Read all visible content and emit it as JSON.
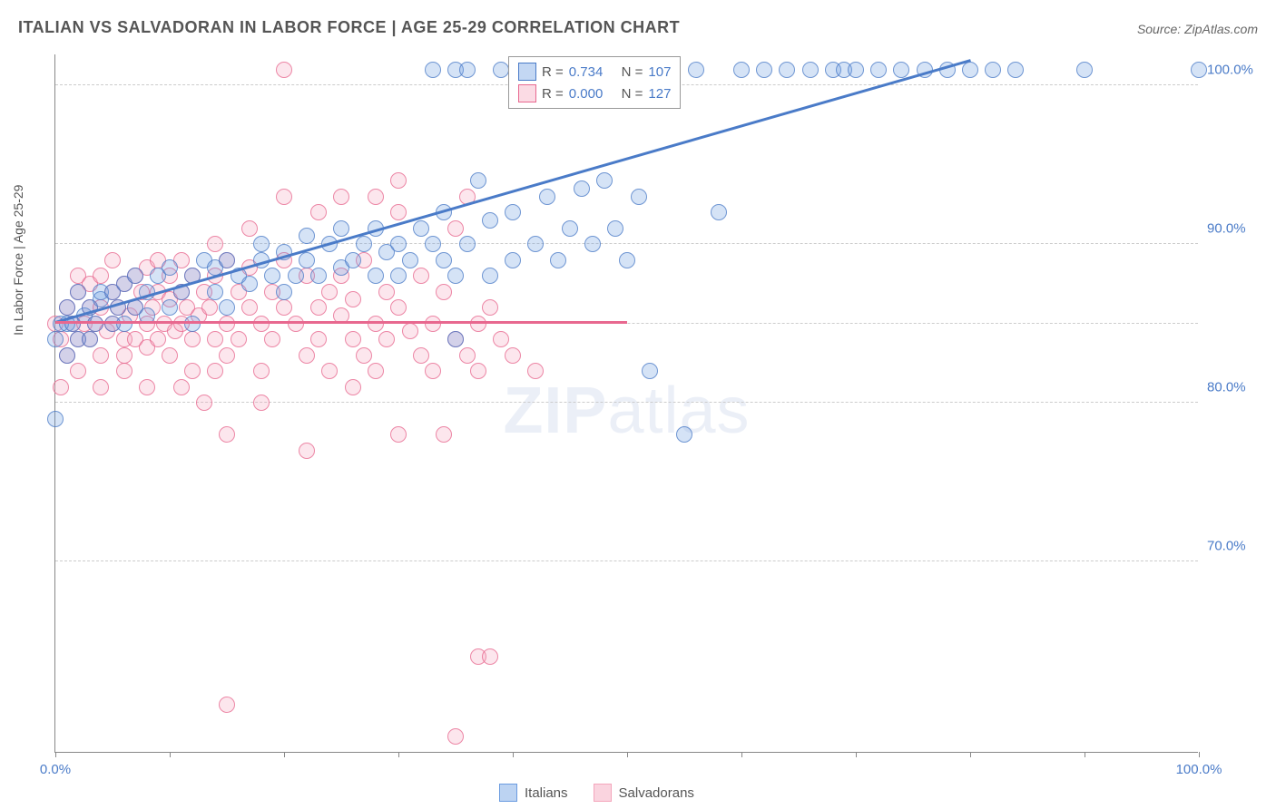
{
  "title": "ITALIAN VS SALVADORAN IN LABOR FORCE | AGE 25-29 CORRELATION CHART",
  "source": "Source: ZipAtlas.com",
  "ylabel": "In Labor Force | Age 25-29",
  "watermark_bold": "ZIP",
  "watermark_rest": "atlas",
  "chart": {
    "type": "scatter",
    "xlim": [
      0,
      100
    ],
    "ylim": [
      58,
      102
    ],
    "xtick_labels": {
      "0": "0.0%",
      "100": "100.0%"
    },
    "xtick_positions": [
      0,
      10,
      20,
      30,
      40,
      50,
      60,
      70,
      80,
      90,
      100
    ],
    "ytick_labels": {
      "70": "70.0%",
      "80": "80.0%",
      "90": "90.0%",
      "100": "100.0%"
    },
    "grid_y": [
      70,
      80,
      85,
      90,
      100
    ],
    "grid_color": "#cccccc",
    "background_color": "#ffffff",
    "marker_radius": 9,
    "marker_fill_opacity": 0.35,
    "series": [
      {
        "name": "Italians",
        "color": "#6a9be0",
        "stroke": "#4a7bc8",
        "r_value": "0.734",
        "n_value": "107",
        "trend": {
          "x1": 0,
          "y1": 85,
          "x2": 80,
          "y2": 101.5
        },
        "points": [
          [
            0,
            79
          ],
          [
            0,
            84
          ],
          [
            0.5,
            85
          ],
          [
            1,
            83
          ],
          [
            1,
            85
          ],
          [
            1,
            86
          ],
          [
            1.5,
            85
          ],
          [
            2,
            84
          ],
          [
            2,
            87
          ],
          [
            2.5,
            85.5
          ],
          [
            3,
            84
          ],
          [
            3,
            86
          ],
          [
            3.5,
            85
          ],
          [
            4,
            86.5
          ],
          [
            4,
            87
          ],
          [
            5,
            85
          ],
          [
            5,
            87
          ],
          [
            5.5,
            86
          ],
          [
            6,
            87.5
          ],
          [
            6,
            85
          ],
          [
            7,
            86
          ],
          [
            7,
            88
          ],
          [
            8,
            85.5
          ],
          [
            8,
            87
          ],
          [
            9,
            88
          ],
          [
            10,
            86
          ],
          [
            10,
            88.5
          ],
          [
            11,
            87
          ],
          [
            12,
            88
          ],
          [
            12,
            85
          ],
          [
            13,
            89
          ],
          [
            14,
            87
          ],
          [
            14,
            88.5
          ],
          [
            15,
            86
          ],
          [
            15,
            89
          ],
          [
            16,
            88
          ],
          [
            17,
            87.5
          ],
          [
            18,
            89
          ],
          [
            18,
            90
          ],
          [
            19,
            88
          ],
          [
            20,
            87
          ],
          [
            20,
            89.5
          ],
          [
            21,
            88
          ],
          [
            22,
            89
          ],
          [
            22,
            90.5
          ],
          [
            23,
            88
          ],
          [
            24,
            90
          ],
          [
            25,
            88.5
          ],
          [
            25,
            91
          ],
          [
            26,
            89
          ],
          [
            27,
            90
          ],
          [
            28,
            88
          ],
          [
            28,
            91
          ],
          [
            29,
            89.5
          ],
          [
            30,
            90
          ],
          [
            30,
            88
          ],
          [
            31,
            89
          ],
          [
            32,
            91
          ],
          [
            33,
            90
          ],
          [
            34,
            89
          ],
          [
            34,
            92
          ],
          [
            35,
            88
          ],
          [
            35,
            84
          ],
          [
            36,
            90
          ],
          [
            37,
            94
          ],
          [
            38,
            91.5
          ],
          [
            38,
            88
          ],
          [
            39,
            101
          ],
          [
            40,
            89
          ],
          [
            40,
            92
          ],
          [
            41,
            101
          ],
          [
            42,
            90
          ],
          [
            43,
            93
          ],
          [
            44,
            89
          ],
          [
            45,
            91
          ],
          [
            45,
            101
          ],
          [
            46,
            93.5
          ],
          [
            47,
            90
          ],
          [
            48,
            94
          ],
          [
            49,
            91
          ],
          [
            50,
            89
          ],
          [
            50,
            101
          ],
          [
            51,
            93
          ],
          [
            52,
            82
          ],
          [
            53,
            101
          ],
          [
            55,
            78
          ],
          [
            56,
            101
          ],
          [
            58,
            92
          ],
          [
            60,
            101
          ],
          [
            62,
            101
          ],
          [
            64,
            101
          ],
          [
            66,
            101
          ],
          [
            68,
            101
          ],
          [
            69,
            101
          ],
          [
            70,
            101
          ],
          [
            72,
            101
          ],
          [
            74,
            101
          ],
          [
            76,
            101
          ],
          [
            78,
            101
          ],
          [
            80,
            101
          ],
          [
            82,
            101
          ],
          [
            84,
            101
          ],
          [
            90,
            101
          ],
          [
            100,
            101
          ],
          [
            33,
            101
          ],
          [
            35,
            101
          ],
          [
            36,
            101
          ]
        ]
      },
      {
        "name": "Salvadorans",
        "color": "#f4a6bc",
        "stroke": "#e8688f",
        "r_value": "0.000",
        "n_value": "127",
        "trend": {
          "x1": 0,
          "y1": 85,
          "x2": 50,
          "y2": 85
        },
        "points": [
          [
            0,
            85
          ],
          [
            0.5,
            84
          ],
          [
            1,
            86
          ],
          [
            1,
            83
          ],
          [
            1.5,
            85
          ],
          [
            2,
            87
          ],
          [
            2,
            84
          ],
          [
            2,
            88
          ],
          [
            2.5,
            85
          ],
          [
            3,
            86
          ],
          [
            3,
            84
          ],
          [
            3,
            87.5
          ],
          [
            3.5,
            85
          ],
          [
            4,
            88
          ],
          [
            4,
            83
          ],
          [
            4,
            86
          ],
          [
            4.5,
            84.5
          ],
          [
            5,
            87
          ],
          [
            5,
            85
          ],
          [
            5,
            89
          ],
          [
            5.5,
            86
          ],
          [
            6,
            84
          ],
          [
            6,
            87.5
          ],
          [
            6,
            83
          ],
          [
            6.5,
            85.5
          ],
          [
            7,
            88
          ],
          [
            7,
            84
          ],
          [
            7,
            86
          ],
          [
            7.5,
            87
          ],
          [
            8,
            85
          ],
          [
            8,
            83.5
          ],
          [
            8,
            88.5
          ],
          [
            8.5,
            86
          ],
          [
            9,
            84
          ],
          [
            9,
            87
          ],
          [
            9,
            89
          ],
          [
            9.5,
            85
          ],
          [
            10,
            88
          ],
          [
            10,
            83
          ],
          [
            10,
            86.5
          ],
          [
            10.5,
            84.5
          ],
          [
            11,
            87
          ],
          [
            11,
            85
          ],
          [
            11,
            89
          ],
          [
            11.5,
            86
          ],
          [
            12,
            84
          ],
          [
            12,
            88
          ],
          [
            12,
            82
          ],
          [
            12.5,
            85.5
          ],
          [
            13,
            87
          ],
          [
            13,
            80
          ],
          [
            13.5,
            86
          ],
          [
            14,
            84
          ],
          [
            14,
            88
          ],
          [
            15,
            89
          ],
          [
            15,
            85
          ],
          [
            15,
            83
          ],
          [
            15,
            61
          ],
          [
            16,
            87
          ],
          [
            16,
            84
          ],
          [
            17,
            86
          ],
          [
            17,
            88.5
          ],
          [
            18,
            85
          ],
          [
            18,
            82
          ],
          [
            19,
            87
          ],
          [
            19,
            84
          ],
          [
            20,
            86
          ],
          [
            20,
            89
          ],
          [
            20,
            101
          ],
          [
            21,
            85
          ],
          [
            22,
            88
          ],
          [
            22,
            83
          ],
          [
            23,
            86
          ],
          [
            23,
            84
          ],
          [
            24,
            87
          ],
          [
            24,
            82
          ],
          [
            25,
            85.5
          ],
          [
            25,
            88
          ],
          [
            26,
            84
          ],
          [
            26,
            86.5
          ],
          [
            27,
            83
          ],
          [
            27,
            89
          ],
          [
            28,
            85
          ],
          [
            28,
            82
          ],
          [
            29,
            87
          ],
          [
            29,
            84
          ],
          [
            30,
            86
          ],
          [
            30,
            78
          ],
          [
            30,
            92
          ],
          [
            31,
            84.5
          ],
          [
            32,
            83
          ],
          [
            32,
            88
          ],
          [
            33,
            85
          ],
          [
            33,
            82
          ],
          [
            34,
            87
          ],
          [
            34,
            78
          ],
          [
            35,
            84
          ],
          [
            35,
            91
          ],
          [
            35,
            59
          ],
          [
            36,
            83
          ],
          [
            36,
            93
          ],
          [
            37,
            85
          ],
          [
            37,
            82
          ],
          [
            37,
            64
          ],
          [
            38,
            86
          ],
          [
            38,
            64
          ],
          [
            39,
            84
          ],
          [
            40,
            83
          ],
          [
            42,
            82
          ],
          [
            15,
            78
          ],
          [
            8,
            81
          ],
          [
            18,
            80
          ],
          [
            22,
            77
          ],
          [
            26,
            81
          ],
          [
            14,
            82
          ],
          [
            11,
            81
          ],
          [
            6,
            82
          ],
          [
            4,
            81
          ],
          [
            2,
            82
          ],
          [
            0.5,
            81
          ],
          [
            28,
            93
          ],
          [
            30,
            94
          ],
          [
            25,
            93
          ],
          [
            23,
            92
          ],
          [
            20,
            93
          ],
          [
            17,
            91
          ],
          [
            14,
            90
          ]
        ]
      }
    ]
  },
  "legend_bottom": [
    {
      "label": "Italians",
      "fill": "#bcd3f2",
      "stroke": "#6a9be0"
    },
    {
      "label": "Salvadorans",
      "fill": "#fad4df",
      "stroke": "#f4a6bc"
    }
  ]
}
